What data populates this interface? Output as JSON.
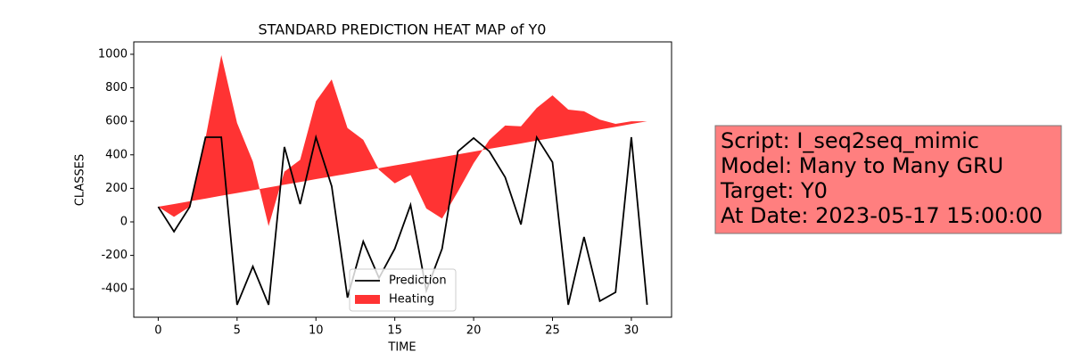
{
  "chart_data": {
    "type": "line",
    "title": "STANDARD PREDICTION HEAT MAP of Y0",
    "x_label": "TIME",
    "y_label": "CLASSES",
    "x": [
      0,
      1,
      2,
      3,
      4,
      5,
      6,
      7,
      8,
      9,
      10,
      11,
      12,
      13,
      14,
      15,
      16,
      17,
      18,
      19,
      20,
      21,
      22,
      23,
      24,
      25,
      26,
      27,
      28,
      29,
      30,
      31
    ],
    "series": [
      {
        "name": "Prediction",
        "type": "line",
        "color": "#000000",
        "values": [
          90,
          -58,
          90,
          505,
          505,
          -495,
          -266,
          -495,
          447,
          106,
          505,
          213,
          -452,
          -117,
          -335,
          -160,
          101,
          -410,
          -160,
          420,
          500,
          420,
          266,
          -16,
          505,
          356,
          -495,
          -90,
          -473,
          -420,
          505,
          -495
        ]
      },
      {
        "name": "Heating",
        "type": "area",
        "color": "#ff0000",
        "values": [
          90,
          30,
          90,
          500,
          995,
          590,
          360,
          -25,
          300,
          370,
          720,
          850,
          560,
          490,
          310,
          230,
          280,
          80,
          20,
          180,
          350,
          490,
          575,
          570,
          680,
          755,
          670,
          660,
          610,
          585,
          600,
          600
        ],
        "baseline": [
          90,
          106,
          123,
          139,
          156,
          172,
          189,
          205,
          222,
          238,
          255,
          271,
          287,
          304,
          320,
          337,
          353,
          370,
          386,
          403,
          419,
          436,
          452,
          468,
          485,
          501,
          518,
          534,
          551,
          567,
          584,
          600
        ]
      }
    ],
    "xlim": [
      -1.55,
      32.55
    ],
    "xticks": [
      0,
      5,
      10,
      15,
      20,
      25,
      30
    ],
    "ylim": [
      -569,
      1074
    ],
    "yticks": [
      -400,
      -200,
      0,
      200,
      400,
      600,
      800,
      1000
    ],
    "legend": "lower center",
    "annotation": [
      "Script: I_seq2seq_mimic",
      "Model: Many to Many GRU",
      "Target: Y0",
      "At Date: 2023-05-17 15:00:00"
    ]
  }
}
